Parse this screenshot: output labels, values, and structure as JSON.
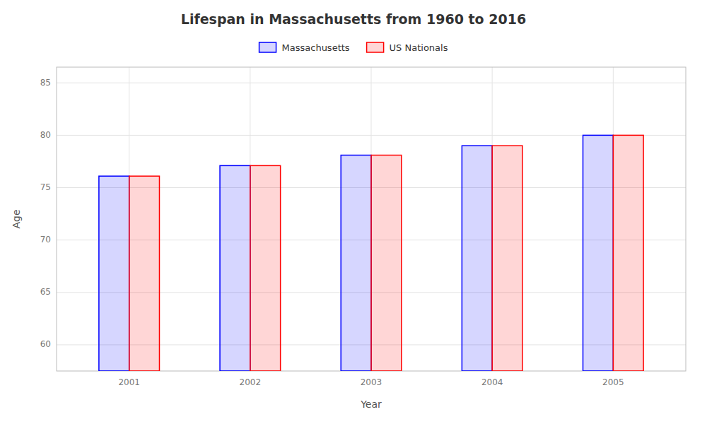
{
  "chart_data": {
    "type": "bar",
    "title": "Lifespan in Massachusetts from 1960 to 2016",
    "xlabel": "Year",
    "ylabel": "Age",
    "categories": [
      "2001",
      "2002",
      "2003",
      "2004",
      "2005"
    ],
    "series": [
      {
        "name": "Massachusetts",
        "color": "#0000ff",
        "values": [
          76.1,
          77.1,
          78.1,
          79.0,
          80.0
        ]
      },
      {
        "name": "US Nationals",
        "color": "#ff0000",
        "values": [
          76.1,
          77.1,
          78.1,
          79.0,
          80.0
        ]
      }
    ],
    "ylim": [
      57.5,
      86.5
    ],
    "yticks": [
      60,
      65,
      70,
      75,
      80,
      85
    ],
    "grid": true,
    "legend": "top"
  }
}
